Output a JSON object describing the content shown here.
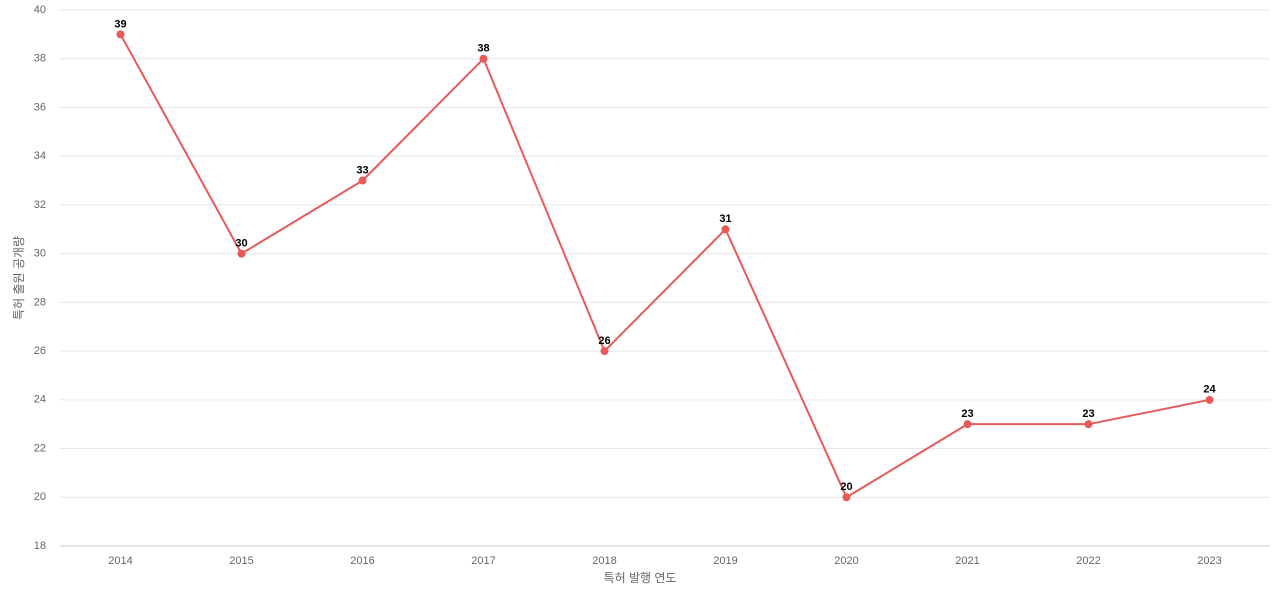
{
  "chart_data": {
    "type": "line",
    "x_label": "특허 발행 연도",
    "y_label": "특허 출원 공개량",
    "categories": [
      "2014",
      "2015",
      "2016",
      "2017",
      "2018",
      "2019",
      "2020",
      "2021",
      "2022",
      "2023"
    ],
    "values": [
      39,
      30,
      33,
      38,
      26,
      31,
      20,
      23,
      23,
      24
    ],
    "color": "#e85a5a",
    "ylim": [
      18,
      40
    ],
    "yticks": [
      18,
      20,
      22,
      24,
      26,
      28,
      30,
      32,
      34,
      36,
      38,
      40
    ],
    "grid": true
  }
}
